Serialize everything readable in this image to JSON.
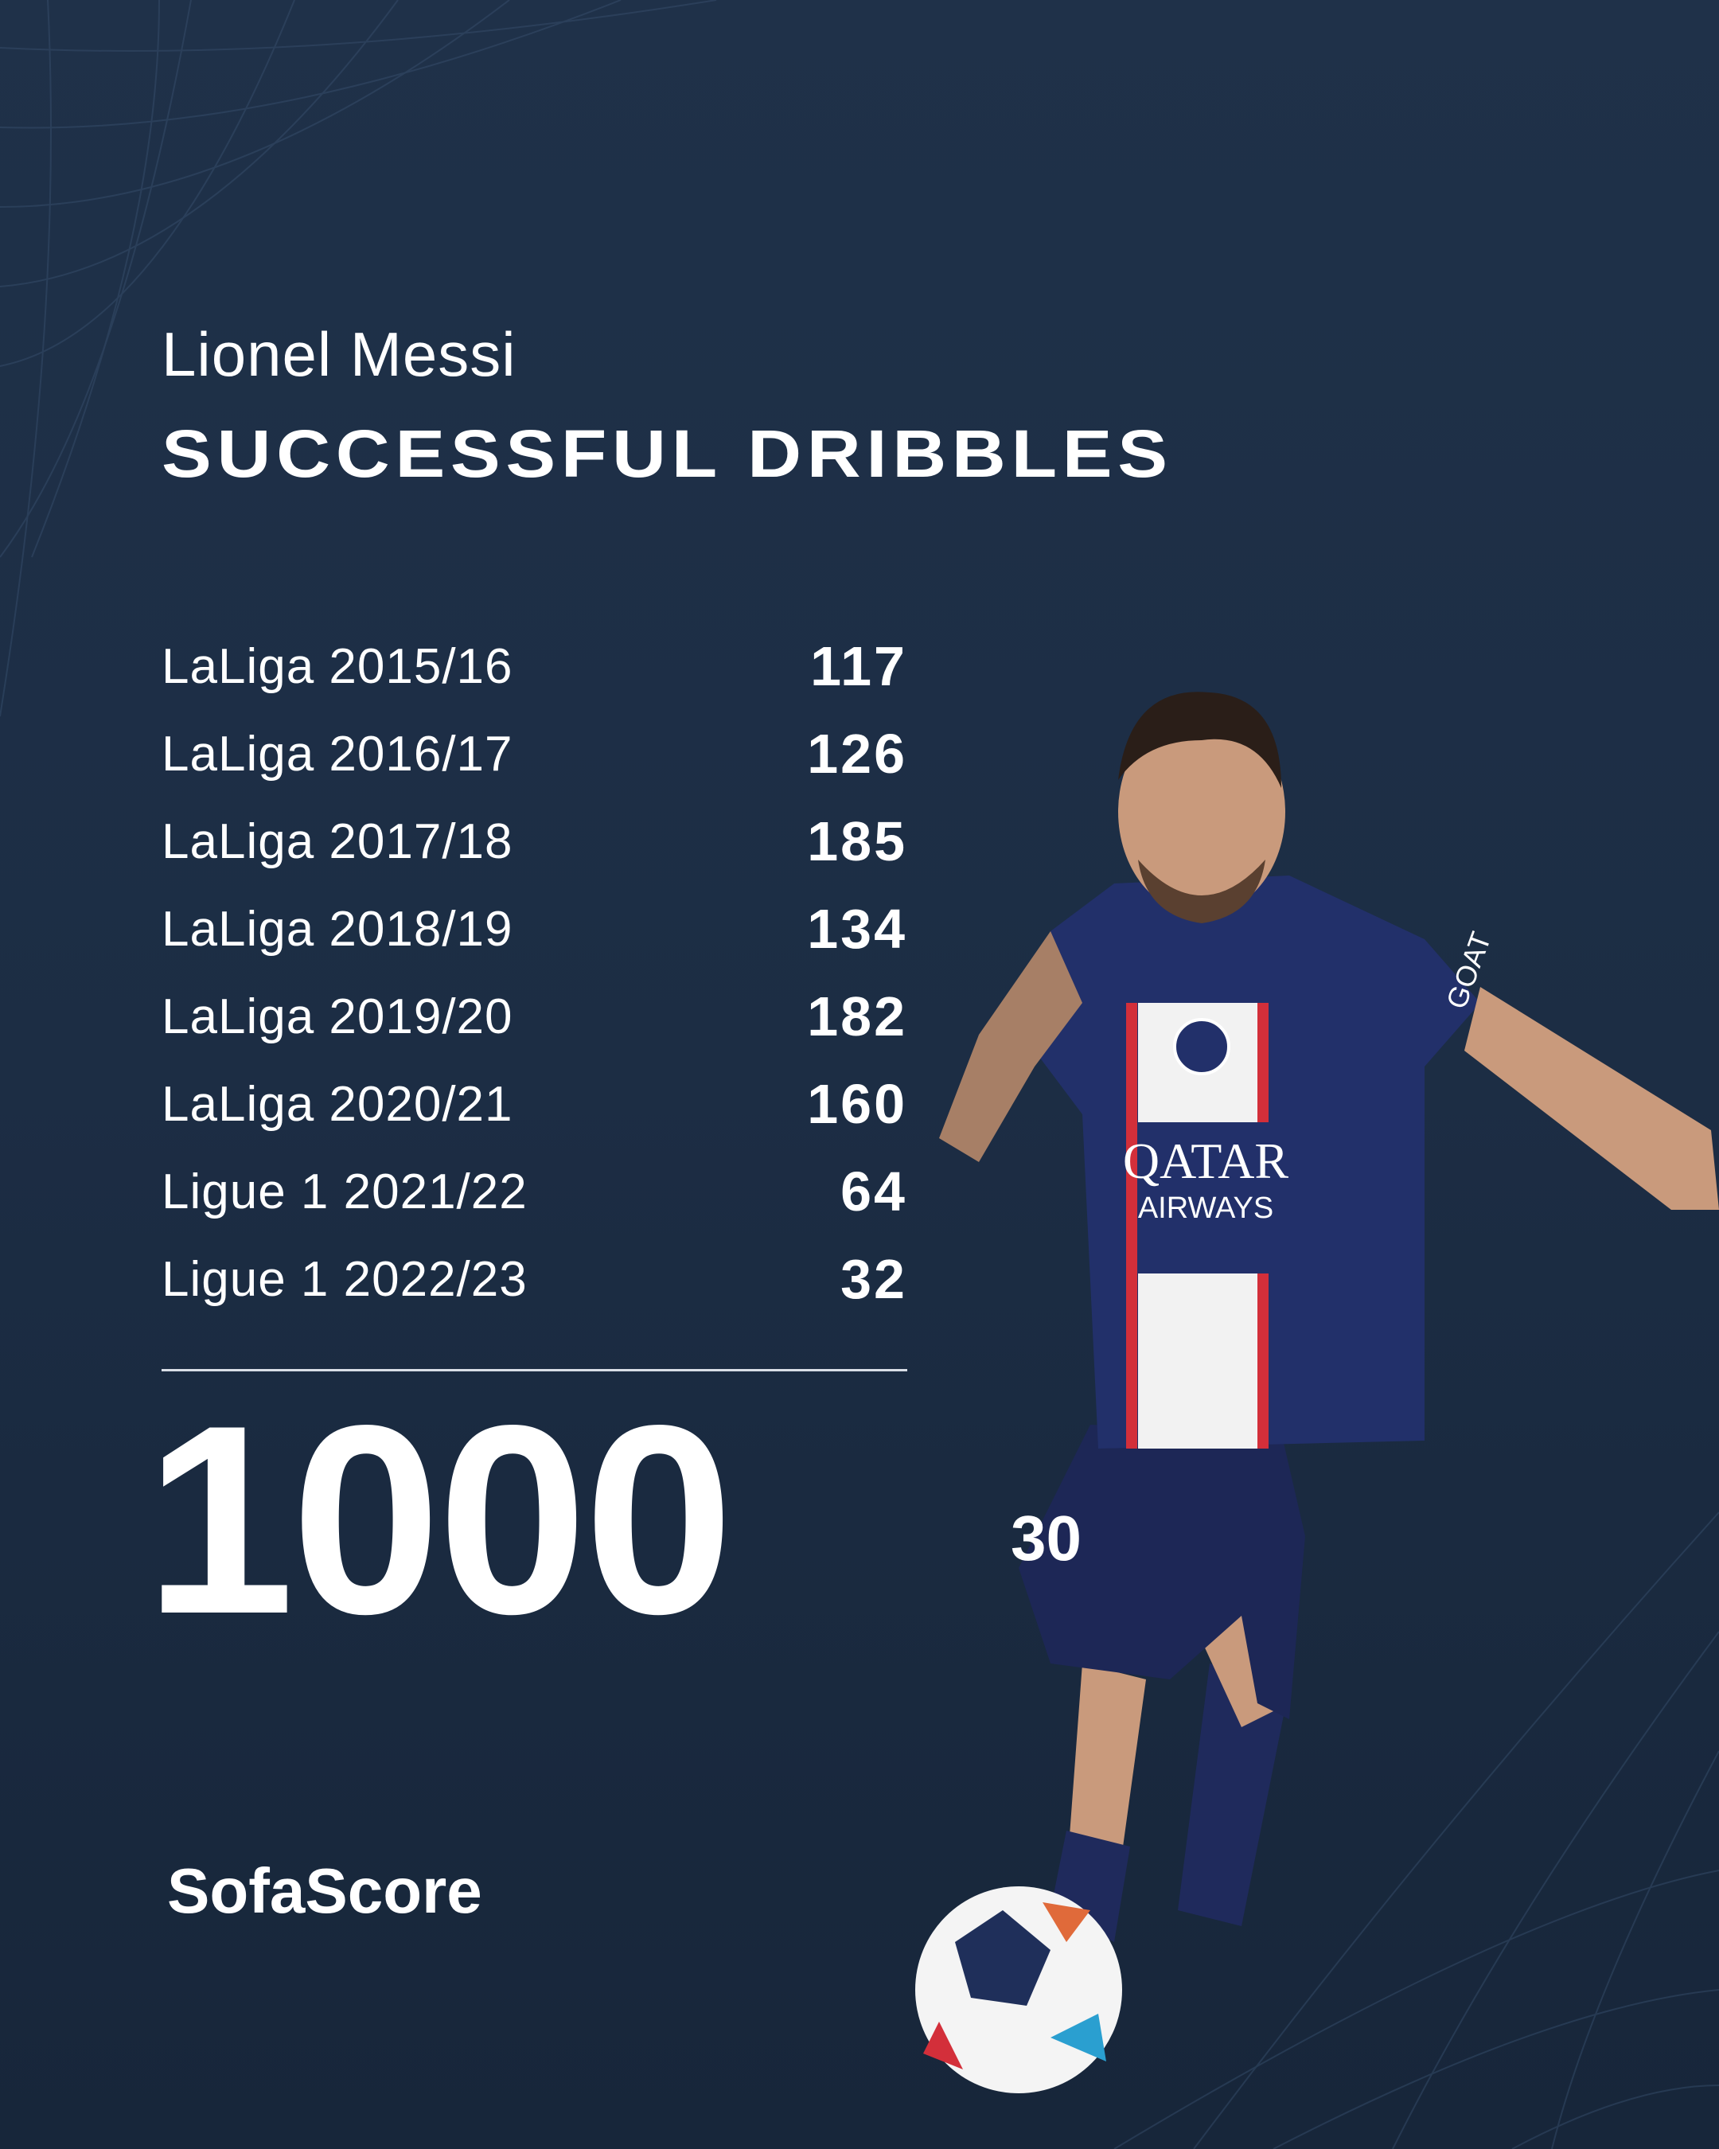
{
  "player": "Lionel Messi",
  "title": "SUCCESSFUL DRIBBLES",
  "seasons": [
    {
      "label": "LaLiga 2015/16",
      "value": "117"
    },
    {
      "label": "LaLiga 2016/17",
      "value": "126"
    },
    {
      "label": "LaLiga 2017/18",
      "value": "185"
    },
    {
      "label": "LaLiga 2018/19",
      "value": "134"
    },
    {
      "label": "LaLiga 2019/20",
      "value": "182"
    },
    {
      "label": "LaLiga 2020/21",
      "value": "160"
    },
    {
      "label": "Ligue 1 2021/22",
      "value": "64"
    },
    {
      "label": "Ligue 1 2022/23",
      "value": "32"
    }
  ],
  "total": "1000",
  "brand": "SofaScore",
  "photo": {
    "sponsor_line1": "QATAR",
    "sponsor_line2": "AIRWAYS",
    "sleeve_text": "GOAT",
    "shirt_number": "30"
  },
  "colors": {
    "background": "#1e3048",
    "text": "#ffffff",
    "jersey": "#1f2a5c",
    "jersey_stripe": "#d32f3a"
  }
}
